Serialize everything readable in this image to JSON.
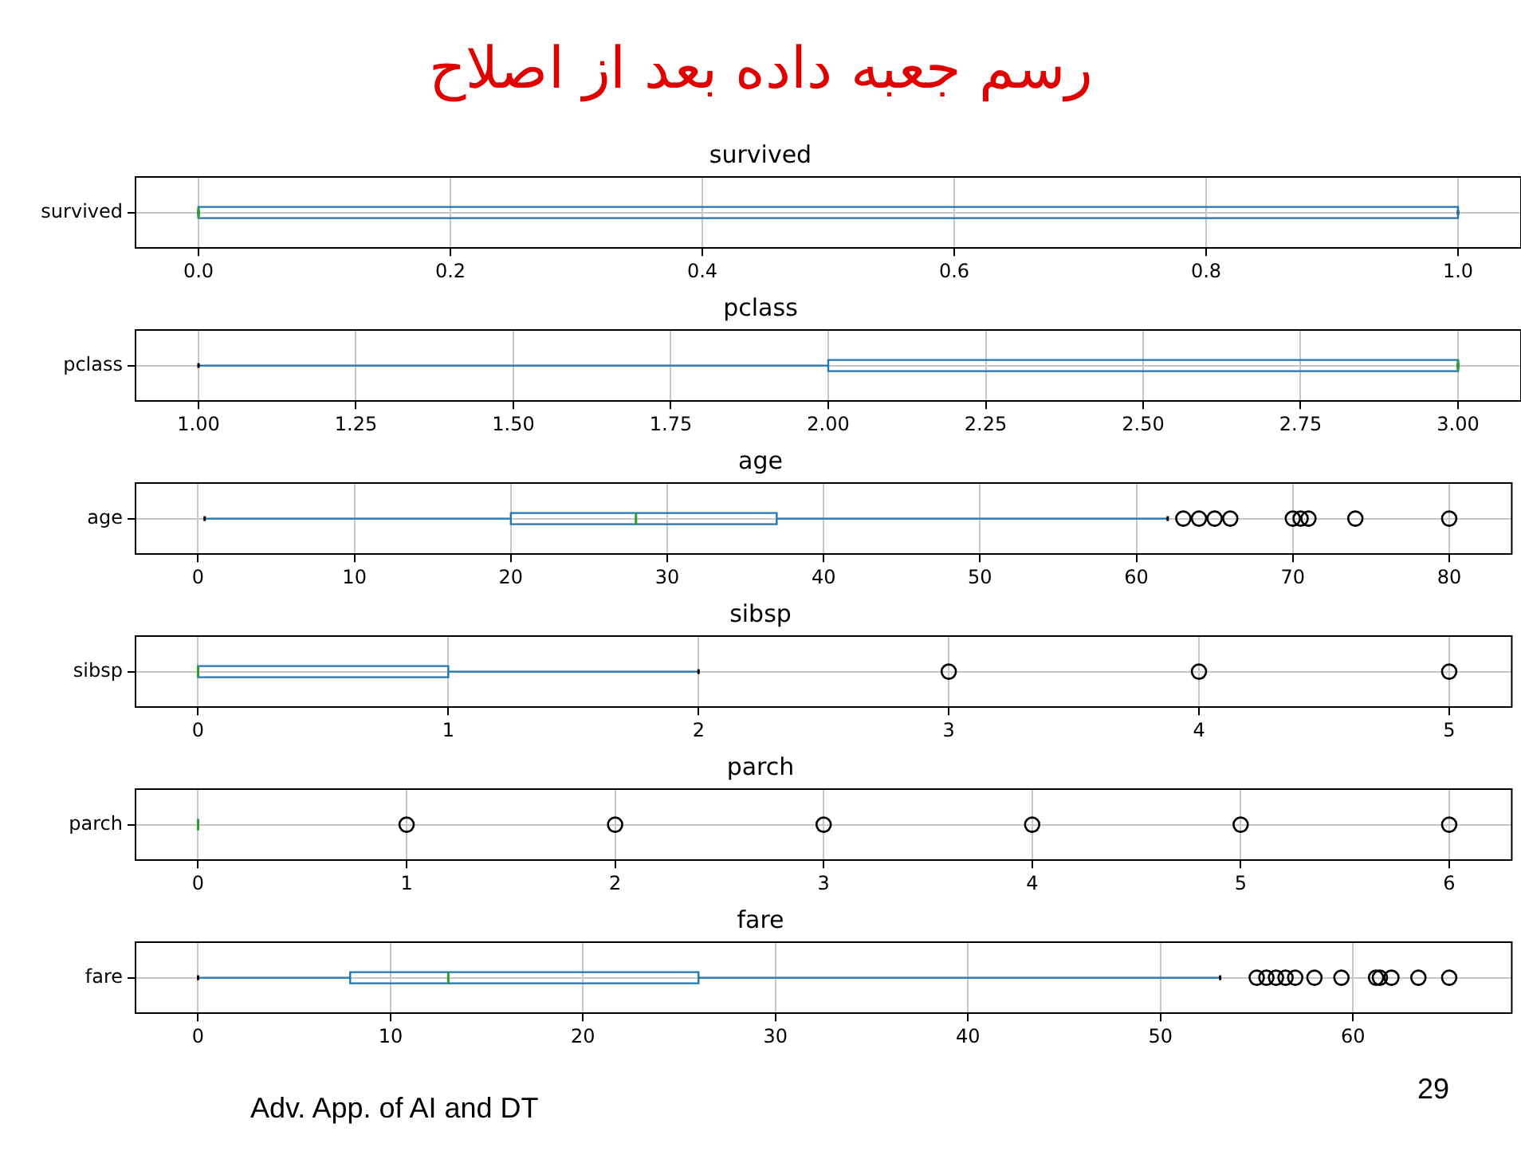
{
  "chart_data": [
    {
      "type": "box",
      "title": "survived",
      "orientation": "horizontal",
      "categories": [
        "survived"
      ],
      "grid": true,
      "xlim": [
        -0.05,
        1.05
      ],
      "xticks": [
        {
          "value": 0,
          "label": "0.0"
        },
        0.2,
        0.4,
        0.6,
        0.8,
        {
          "value": 1,
          "label": "1.0"
        }
      ],
      "annotations": [
        "رسم جعبه داده بعد از اصلاح"
      ],
      "series": [
        {
          "color": "#1f77b4",
          "boxes": [
            {
              "low": 0,
              "q1": 0,
              "median": 0,
              "q3": 1,
              "high": 1
            }
          ]
        }
      ]
    },
    {
      "type": "box",
      "title": "pclass",
      "orientation": "horizontal",
      "categories": [
        "pclass"
      ],
      "grid": true,
      "xlim": [
        0.9,
        3.1
      ],
      "xticks": [
        {
          "value": 1,
          "label": "1.00"
        },
        1.25,
        {
          "value": 1.5,
          "label": "1.50"
        },
        1.75,
        {
          "value": 2,
          "label": "2.00"
        },
        2.25,
        {
          "value": 2.5,
          "label": "2.50"
        },
        2.75,
        {
          "value": 3,
          "label": "3.00"
        }
      ],
      "series": [
        {
          "color": "#1f77b4",
          "boxes": [
            {
              "low": 1,
              "q1": 2,
              "median": 3,
              "q3": 3,
              "high": 3
            }
          ]
        }
      ]
    },
    {
      "type": "box",
      "title": "age",
      "orientation": "horizontal",
      "categories": [
        "age"
      ],
      "grid": true,
      "xlim": [
        -4,
        84
      ],
      "xticks": [
        0,
        10,
        20,
        30,
        40,
        50,
        60,
        70,
        80
      ],
      "series": [
        {
          "color": "#1f77b4",
          "boxes": [
            {
              "low": 0.42,
              "q1": 20,
              "median": 28,
              "q3": 37,
              "high": 62,
              "outliers": [
                63,
                64,
                65,
                66,
                70,
                70.5,
                71,
                74,
                80
              ]
            }
          ]
        }
      ]
    },
    {
      "type": "box",
      "title": "sibsp",
      "orientation": "horizontal",
      "categories": [
        "sibsp"
      ],
      "grid": true,
      "xlim": [
        -0.25,
        5.25
      ],
      "xticks": [
        0,
        1,
        2,
        3,
        4,
        5
      ],
      "series": [
        {
          "color": "#1f77b4",
          "boxes": [
            {
              "low": 0,
              "q1": 0,
              "median": 0,
              "q3": 1,
              "high": 2,
              "outliers": [
                3,
                4,
                5
              ]
            }
          ]
        }
      ]
    },
    {
      "type": "box",
      "title": "parch",
      "orientation": "horizontal",
      "categories": [
        "parch"
      ],
      "grid": true,
      "xlim": [
        -0.3,
        6.3
      ],
      "xticks": [
        0,
        1,
        2,
        3,
        4,
        5,
        6
      ],
      "series": [
        {
          "color": "#1f77b4",
          "boxes": [
            {
              "low": 0,
              "q1": 0,
              "median": 0,
              "q3": 0,
              "high": 0,
              "outliers": [
                1,
                2,
                3,
                4,
                5,
                6
              ]
            }
          ]
        }
      ]
    },
    {
      "type": "box",
      "title": "fare",
      "orientation": "horizontal",
      "categories": [
        "fare"
      ],
      "grid": true,
      "xlim": [
        -3.25,
        68.25
      ],
      "xticks": [
        0,
        10,
        20,
        30,
        40,
        50,
        60
      ],
      "annotations": [
        "Adv. App. of AI and DT",
        "29"
      ],
      "series": [
        {
          "color": "#1f77b4",
          "boxes": [
            {
              "low": 0,
              "q1": 7.9,
              "median": 13,
              "q3": 26,
              "high": 53.1,
              "outliers": [
                55.0,
                55.5,
                56.0,
                56.5,
                57.0,
                58.0,
                59.4,
                61.2,
                61.4,
                62.0,
                63.4,
                65.0
              ]
            }
          ]
        }
      ]
    }
  ]
}
